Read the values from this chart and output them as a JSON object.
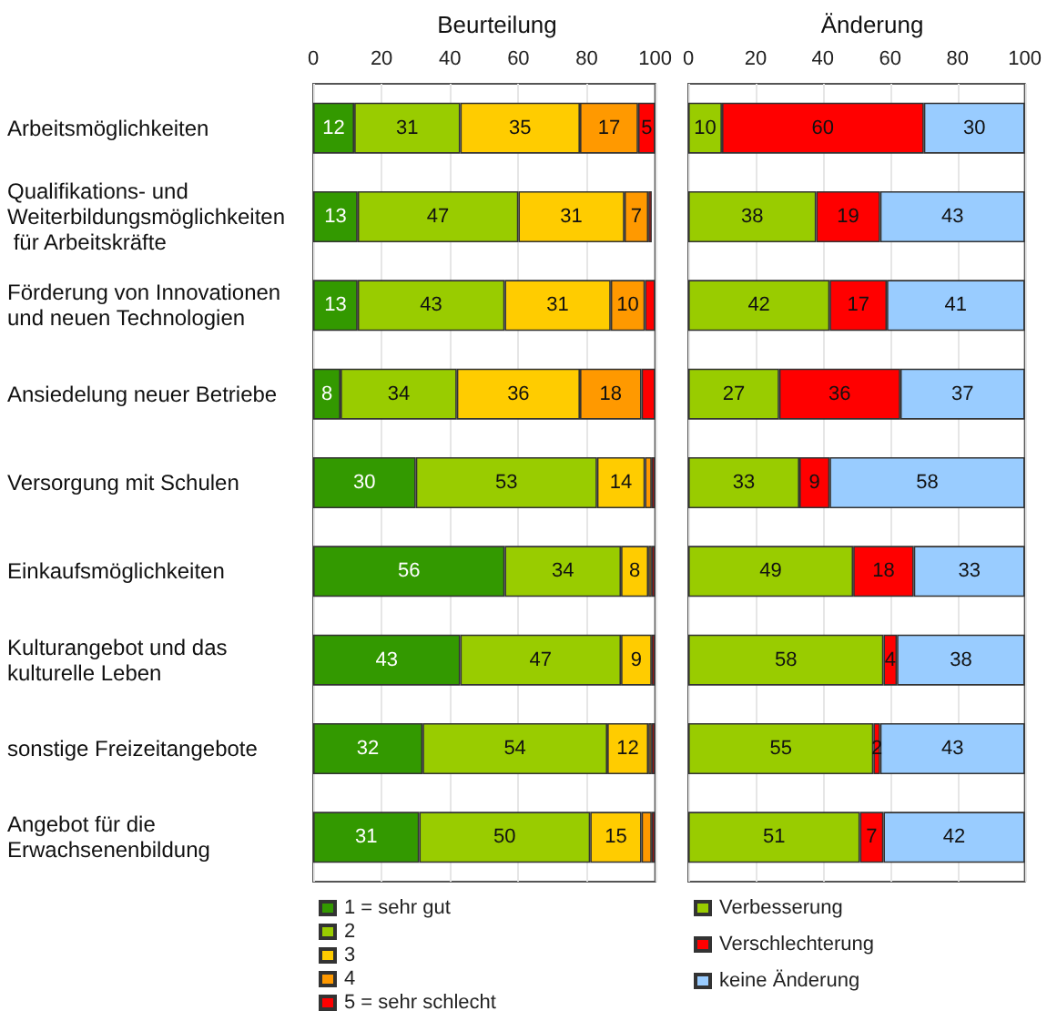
{
  "chart_data": [
    {
      "type": "bar",
      "title": "Beurteilung",
      "orientation": "horizontal",
      "stacked": true,
      "categories": [
        "Arbeitsmöglichkeiten",
        "Qualifikations- und Weiterbildungsmöglichkeiten für Arbeitskräfte",
        "Förderung von Innovationen und neuen Technologien",
        "Ansiedelung neuer Betriebe",
        "Versorgung mit Schulen",
        "Einkaufsmöglichkeiten",
        "Kulturangebot und das kulturelle Leben",
        "sonstige Freizeitangebote",
        "Angebot für die Erwachsenenbildung"
      ],
      "xlim": [
        0,
        100
      ],
      "xticks": [
        0,
        20,
        40,
        60,
        80,
        100
      ],
      "grid": "x",
      "legend": "bottom",
      "series": [
        {
          "name": "1 = sehr gut",
          "color": "#339900",
          "values": [
            12,
            13,
            13,
            8,
            30,
            56,
            43,
            32,
            31
          ],
          "value_labels": [
            "12",
            "13",
            "13",
            "8",
            "30",
            "56",
            "43",
            "32",
            "31"
          ]
        },
        {
          "name": "2",
          "color": "#99cc00",
          "values": [
            31,
            47,
            43,
            34,
            53,
            34,
            47,
            54,
            50
          ],
          "value_labels": [
            "31",
            "47",
            "43",
            "34",
            "53",
            "34",
            "47",
            "54",
            "50"
          ]
        },
        {
          "name": "3",
          "color": "#ffcc00",
          "values": [
            35,
            31,
            31,
            36,
            14,
            8,
            9,
            12,
            15
          ],
          "value_labels": [
            "35",
            "31",
            "31",
            "36",
            "14",
            "8",
            "9",
            "12",
            "15"
          ]
        },
        {
          "name": "4",
          "color": "#ff9900",
          "values": [
            17,
            7,
            10,
            18,
            2,
            1,
            null,
            1,
            3
          ],
          "value_labels": [
            "17",
            "7",
            "10",
            "18",
            null,
            null,
            null,
            null,
            null
          ]
        },
        {
          "name": "5 = sehr schlecht",
          "color": "#ff0000",
          "values": [
            5,
            1,
            3,
            4,
            1,
            1,
            1,
            1,
            1
          ],
          "value_labels": [
            "5",
            null,
            null,
            null,
            null,
            null,
            null,
            null,
            null
          ]
        }
      ]
    },
    {
      "type": "bar",
      "title": "Änderung",
      "orientation": "horizontal",
      "stacked": true,
      "categories": [
        "Arbeitsmöglichkeiten",
        "Qualifikations- und Weiterbildungsmöglichkeiten für Arbeitskräfte",
        "Förderung von Innovationen und neuen Technologien",
        "Ansiedelung neuer Betriebe",
        "Versorgung mit Schulen",
        "Einkaufsmöglichkeiten",
        "Kulturangebot und das kulturelle Leben",
        "sonstige Freizeitangebote",
        "Angebot für die Erwachsenenbildung"
      ],
      "tick_labels": "x",
      "xlim": [
        0,
        100
      ],
      "xticks": [
        0,
        20,
        40,
        60,
        80,
        100
      ],
      "grid": "x",
      "legend": "bottom",
      "data_labels": true,
      "series": [
        {
          "name": "Verbesserung",
          "color": "#99cc00",
          "values": [
            10,
            38,
            42,
            27,
            33,
            49,
            58,
            55,
            51
          ]
        },
        {
          "name": "Verschlechterung",
          "color": "#ff0000",
          "values": [
            60,
            19,
            17,
            36,
            9,
            18,
            4,
            2,
            7
          ]
        },
        {
          "name": "keine Änderung",
          "color": "#99ccff",
          "values": [
            30,
            43,
            41,
            37,
            58,
            33,
            38,
            43,
            42
          ]
        }
      ]
    }
  ]
}
